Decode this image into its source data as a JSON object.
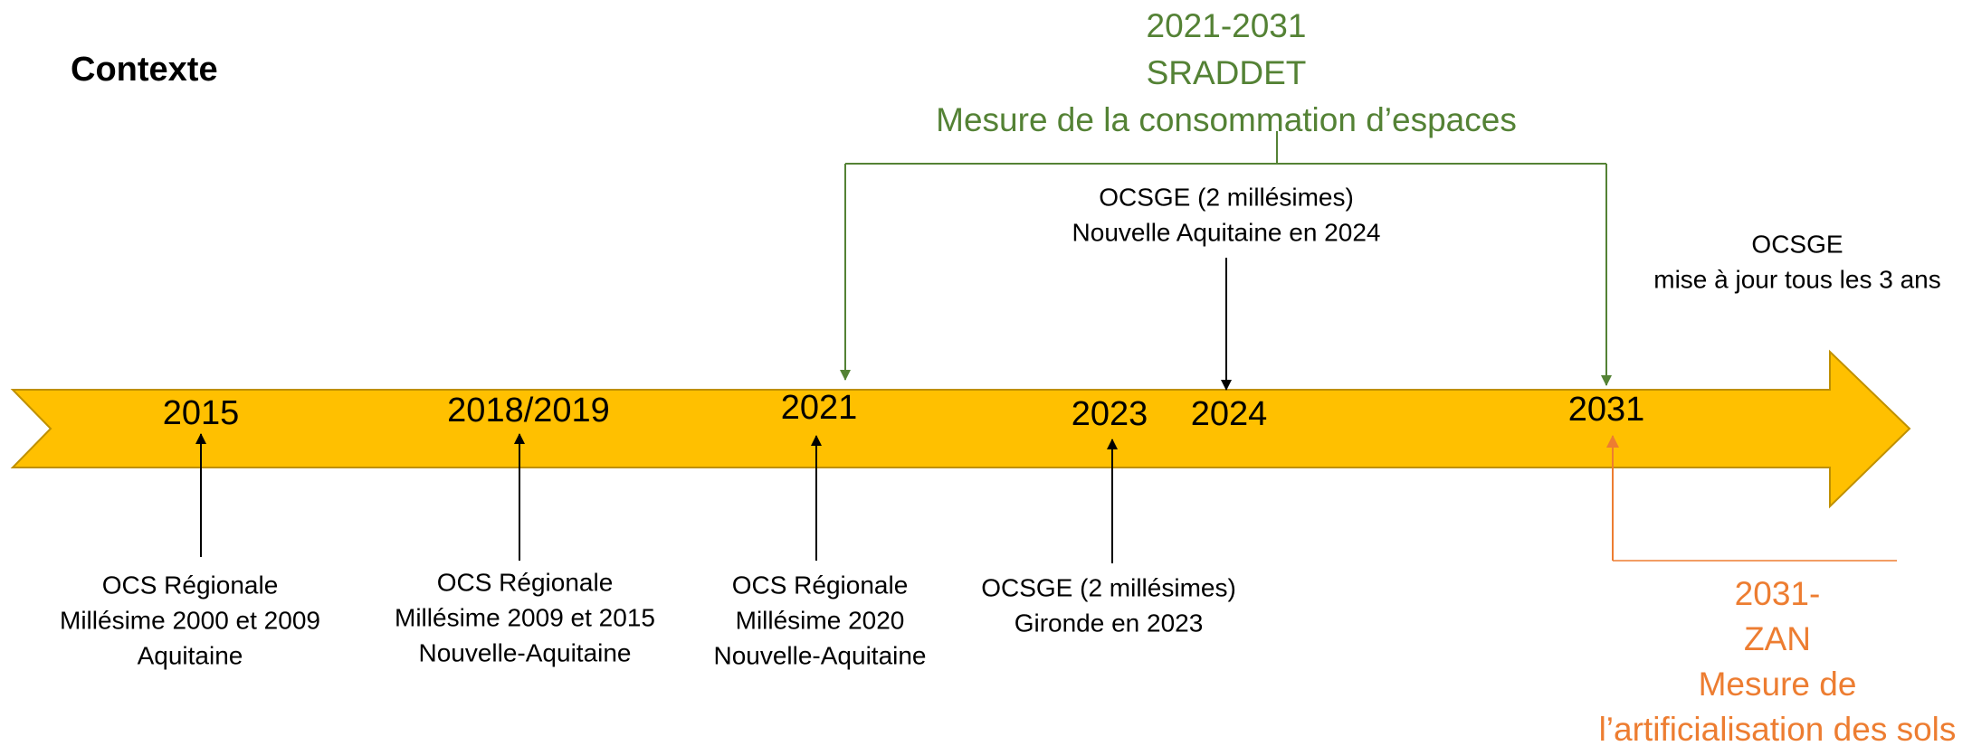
{
  "header": {
    "title": "Contexte"
  },
  "sraddet": {
    "lines": [
      "2021-2031",
      "SRADDET",
      "Mesure de la consommation d’espaces"
    ]
  },
  "zan": {
    "lines": [
      "2031-",
      "ZAN",
      "Mesure de",
      "l’artificialisation des sols"
    ]
  },
  "top_notes": [
    {
      "lines": [
        "OCSGE (2 millésimes)",
        "Nouvelle Aquitaine en 2024"
      ]
    },
    {
      "lines": [
        "OCSGE",
        "mise à jour tous les 3 ans"
      ]
    }
  ],
  "years": [
    "2015",
    "2018/2019",
    "2021",
    "2023",
    "2024",
    "2031"
  ],
  "events": [
    {
      "lines": [
        "OCS Régionale",
        "Millésime 2000 et 2009",
        "Aquitaine"
      ]
    },
    {
      "lines": [
        "OCS Régionale",
        "Millésime 2009 et 2015",
        "Nouvelle-Aquitaine"
      ]
    },
    {
      "lines": [
        "OCS Régionale",
        "Millésime 2020",
        "Nouvelle-Aquitaine"
      ]
    },
    {
      "lines": [
        "OCSGE (2 millésimes)",
        "Gironde en 2023"
      ]
    }
  ]
}
